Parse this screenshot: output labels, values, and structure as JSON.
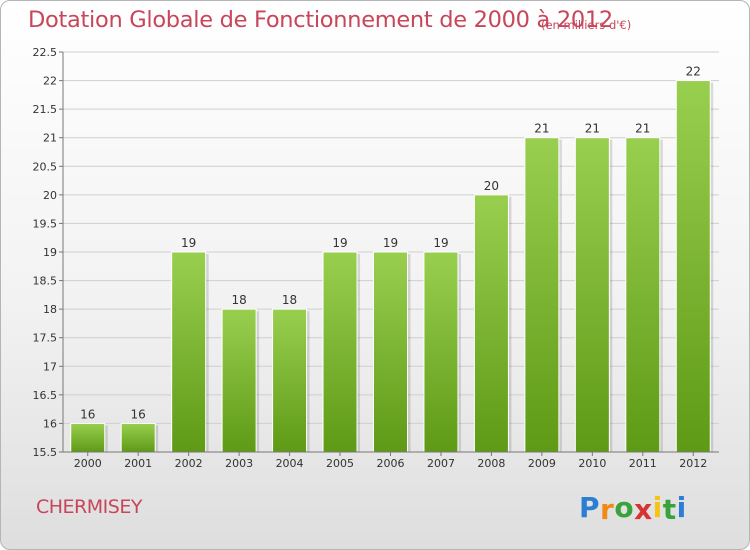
{
  "header": {
    "title": "Dotation Globale de Fonctionnement de 2000 à 2012",
    "unit": "(en milliers d'€)"
  },
  "footer": {
    "commune": "CHERMISEY",
    "logo": {
      "letters": [
        "P",
        "r",
        "o",
        "x",
        "i",
        "t",
        "i"
      ],
      "colors": [
        "#2a7fd4",
        "#f08a14",
        "#3aa23a",
        "#d83232",
        "#f5c314",
        "#3aa23a",
        "#2a7fd4"
      ]
    }
  },
  "chart_data": {
    "type": "bar",
    "categories": [
      "2000",
      "2001",
      "2002",
      "2003",
      "2004",
      "2005",
      "2006",
      "2007",
      "2008",
      "2009",
      "2010",
      "2011",
      "2012"
    ],
    "values": [
      16,
      16,
      19,
      18,
      18,
      19,
      19,
      19,
      20,
      21,
      21,
      21,
      22
    ],
    "value_labels": [
      "16",
      "16",
      "19",
      "18",
      "18",
      "19",
      "19",
      "19",
      "20",
      "21",
      "21",
      "21",
      "22"
    ],
    "title": "Dotation Globale de Fonctionnement de 2000 à 2012",
    "ylim": [
      15.5,
      22.5
    ],
    "yticks": [
      15.5,
      16,
      16.5,
      17,
      17.5,
      18,
      18.5,
      19,
      19.5,
      20,
      20.5,
      21,
      21.5,
      22,
      22.5
    ],
    "ytick_labels": [
      "15.5",
      "16",
      "16.5",
      "17",
      "17.5",
      "18",
      "18.5",
      "19",
      "19.5",
      "20",
      "20.5",
      "21",
      "21.5",
      "22",
      "22.5"
    ],
    "grid": true,
    "colors": {
      "bar_top": "#99cf4f",
      "bar_bottom": "#5e9a16",
      "grid": "#cfcfcf",
      "axis": "#777777"
    }
  }
}
